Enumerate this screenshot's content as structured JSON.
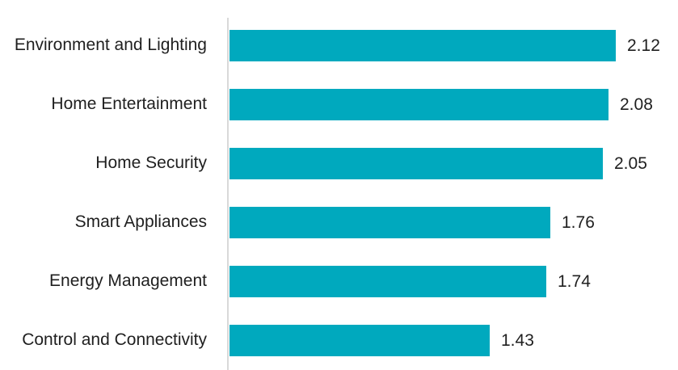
{
  "chart_data": {
    "type": "bar",
    "orientation": "horizontal",
    "categories": [
      "Environment and Lighting",
      "Home Entertainment",
      "Home Security",
      "Smart Appliances",
      "Energy Management",
      "Control and Connectivity"
    ],
    "values": [
      2.12,
      2.08,
      2.05,
      1.76,
      1.74,
      1.43
    ],
    "value_labels": [
      "2.12",
      "2.08",
      "2.05",
      "1.76",
      "1.74",
      "1.43"
    ],
    "xlabel": "",
    "ylabel": "",
    "x_axis_visible": false,
    "gridlines": false,
    "legend": false,
    "data_labels_position": "outside-end",
    "colors": {
      "bar": "#00A9BE",
      "axis_line": "#D9D9D9",
      "text": "#1F1F1F",
      "background": "#FFFFFF"
    }
  }
}
